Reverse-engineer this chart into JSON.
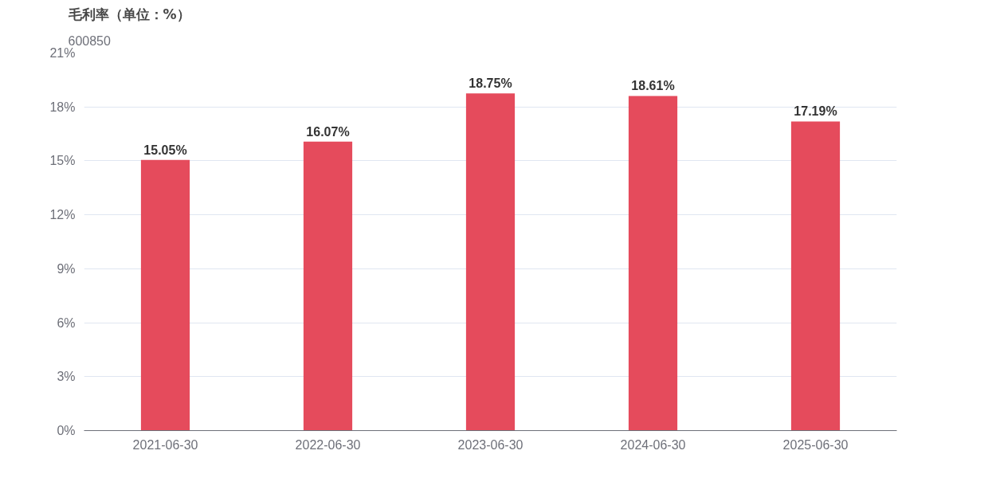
{
  "chart_data": {
    "type": "bar",
    "title": "毛利率（单位：%）",
    "subtitle": "600850",
    "categories": [
      "2021-06-30",
      "2022-06-30",
      "2023-06-30",
      "2024-06-30",
      "2025-06-30"
    ],
    "values": [
      15.05,
      16.07,
      18.75,
      18.61,
      17.19
    ],
    "value_labels": [
      "15.05%",
      "16.07%",
      "18.75%",
      "18.61%",
      "17.19%"
    ],
    "color": "#e54b5c",
    "ylim": [
      0,
      21
    ],
    "yticks": [
      {
        "value": 0,
        "label": "0%"
      },
      {
        "value": 3,
        "label": "3%"
      },
      {
        "value": 6,
        "label": "6%"
      },
      {
        "value": 9,
        "label": "9%"
      },
      {
        "value": 12,
        "label": "12%"
      },
      {
        "value": 15,
        "label": "15%"
      },
      {
        "value": 18,
        "label": "18%"
      },
      {
        "value": 21,
        "label": "21%"
      }
    ],
    "grid": "y"
  }
}
